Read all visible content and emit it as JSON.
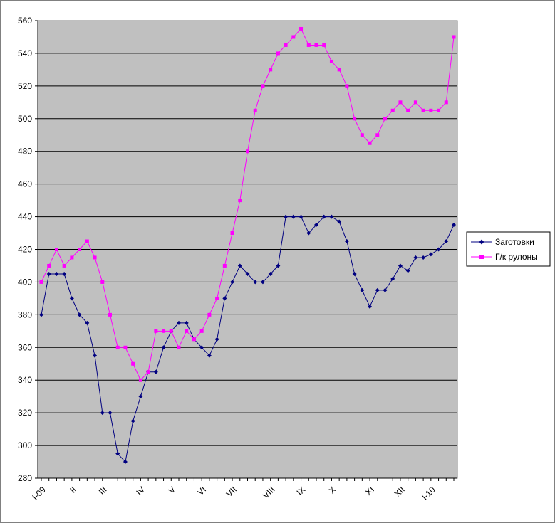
{
  "chart_data": {
    "type": "line",
    "title": "",
    "xlabel": "",
    "ylabel": "",
    "ylim": [
      280,
      560
    ],
    "yticks": [
      280,
      300,
      320,
      340,
      360,
      380,
      400,
      420,
      440,
      460,
      480,
      500,
      520,
      540,
      560
    ],
    "x_tick_labels": [
      "I-09",
      "II",
      "III",
      "IV",
      "V",
      "VI",
      "VII",
      "VIII",
      "IX",
      "X",
      "XI",
      "XII",
      "I-10"
    ],
    "x_tick_positions": [
      0,
      4,
      8,
      13,
      17,
      21,
      25,
      30,
      34,
      38,
      43,
      47,
      51
    ],
    "grid": "horizontal",
    "plot_background": "#c0c0c0",
    "legend_position": "right",
    "series": [
      {
        "name": "Заготовки",
        "color": "#000080",
        "marker": "diamond",
        "values": [
          380,
          405,
          405,
          405,
          390,
          380,
          375,
          355,
          320,
          320,
          295,
          290,
          315,
          330,
          345,
          345,
          360,
          370,
          375,
          375,
          365,
          360,
          355,
          365,
          390,
          400,
          410,
          405,
          400,
          400,
          405,
          410,
          440,
          440,
          440,
          430,
          435,
          440,
          440,
          437,
          425,
          405,
          395,
          385,
          395,
          395,
          402,
          410,
          407,
          415,
          415,
          417,
          420,
          425,
          435
        ]
      },
      {
        "name": "Г/к рулоны",
        "color": "#ff00ff",
        "marker": "square",
        "values": [
          400,
          410,
          420,
          410,
          415,
          420,
          425,
          415,
          400,
          380,
          360,
          360,
          350,
          340,
          345,
          370,
          370,
          370,
          360,
          370,
          365,
          370,
          380,
          390,
          410,
          430,
          450,
          480,
          505,
          520,
          530,
          540,
          545,
          550,
          555,
          545,
          545,
          545,
          535,
          530,
          520,
          500,
          490,
          485,
          490,
          500,
          505,
          510,
          505,
          510,
          505,
          505,
          505,
          510,
          550
        ]
      }
    ]
  }
}
